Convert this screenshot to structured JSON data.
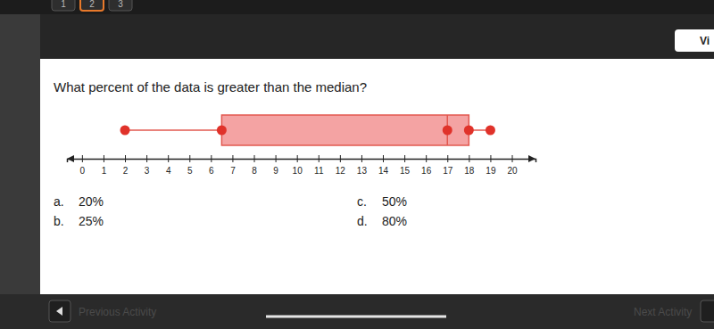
{
  "chart_data": {
    "type": "box",
    "min": 2,
    "q1": 6.5,
    "median": 17,
    "q3": 18,
    "max": 19,
    "color": "#f4a3a3",
    "xlim": [
      -0.7,
      21.1
    ],
    "xticks": [
      0,
      1,
      2,
      3,
      4,
      5,
      6,
      7,
      8,
      9,
      10,
      11,
      12,
      13,
      14,
      15,
      16,
      17,
      18,
      19,
      20
    ]
  },
  "page": {
    "tabs": [
      "1",
      "2",
      "3"
    ],
    "view_button": "Vi",
    "question": "What percent of the data is greater than the median?",
    "options": [
      {
        "letter": "a.",
        "text": "20%"
      },
      {
        "letter": "b.",
        "text": "25%"
      },
      {
        "letter": "c.",
        "text": "50%"
      },
      {
        "letter": "d.",
        "text": "80%"
      }
    ],
    "previous": "Previous Activity",
    "next": "Next Activity"
  }
}
